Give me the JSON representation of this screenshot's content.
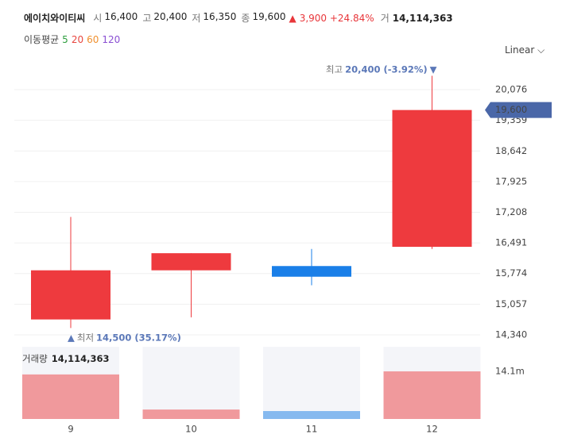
{
  "header": {
    "name": "에이치와이티씨",
    "items": [
      {
        "label": "시",
        "value": "16,400"
      },
      {
        "label": "고",
        "value": "20,400"
      },
      {
        "label": "저",
        "value": "16,350"
      },
      {
        "label": "종",
        "value": "19,600"
      }
    ],
    "change": "3,900 +24.84%",
    "volume_label": "거",
    "volume": "14,114,363"
  },
  "moving_average": {
    "label": "이동평균",
    "periods": [
      {
        "label": "5",
        "color": "#2e9e3e"
      },
      {
        "label": "20",
        "color": "#e8463f"
      },
      {
        "label": "60",
        "color": "#f0902f"
      },
      {
        "label": "120",
        "color": "#8a4fd3"
      }
    ]
  },
  "scale_button": "Linear",
  "chart_data": [
    {
      "type": "candlestick",
      "categories": [
        "9",
        "10",
        "11",
        "12"
      ],
      "open": [
        14700,
        15850,
        15950,
        16400
      ],
      "high": [
        17100,
        16250,
        16350,
        20400
      ],
      "low": [
        14500,
        14750,
        15500,
        16350
      ],
      "close": [
        15850,
        16250,
        15700,
        19600
      ],
      "up_color": "#ee3a3e",
      "down_color": "#1a7fe8",
      "ylim": [
        14154,
        20596
      ],
      "yticks": [
        {
          "value": 14340,
          "label": "14,340"
        },
        {
          "value": 15057,
          "label": "15,057"
        },
        {
          "value": 15774,
          "label": "15,774"
        },
        {
          "value": 16491,
          "label": "16,491"
        },
        {
          "value": 17208,
          "label": "17,208"
        },
        {
          "value": 17925,
          "label": "17,925"
        },
        {
          "value": 18642,
          "label": "18,642"
        },
        {
          "value": 19359,
          "label": "19,359"
        },
        {
          "value": 20076,
          "label": "20,076"
        }
      ],
      "grid": true,
      "last_price_label": "19,600",
      "max_annotation": {
        "label": "최고",
        "text": "20,400 (-3.92%)"
      },
      "min_annotation": {
        "label": "최저",
        "text": "14,500 (35.17%)"
      }
    },
    {
      "type": "volume",
      "title": "거래량",
      "title_value": "14,114,363",
      "values": [
        13200000,
        2800000,
        2350000,
        14114363
      ],
      "up_color": "#f0999c",
      "down_color": "#86b9ef",
      "ylim": [
        0,
        21400000
      ],
      "yticks": [
        {
          "value": 14114363,
          "label": "14.1m"
        }
      ]
    }
  ]
}
